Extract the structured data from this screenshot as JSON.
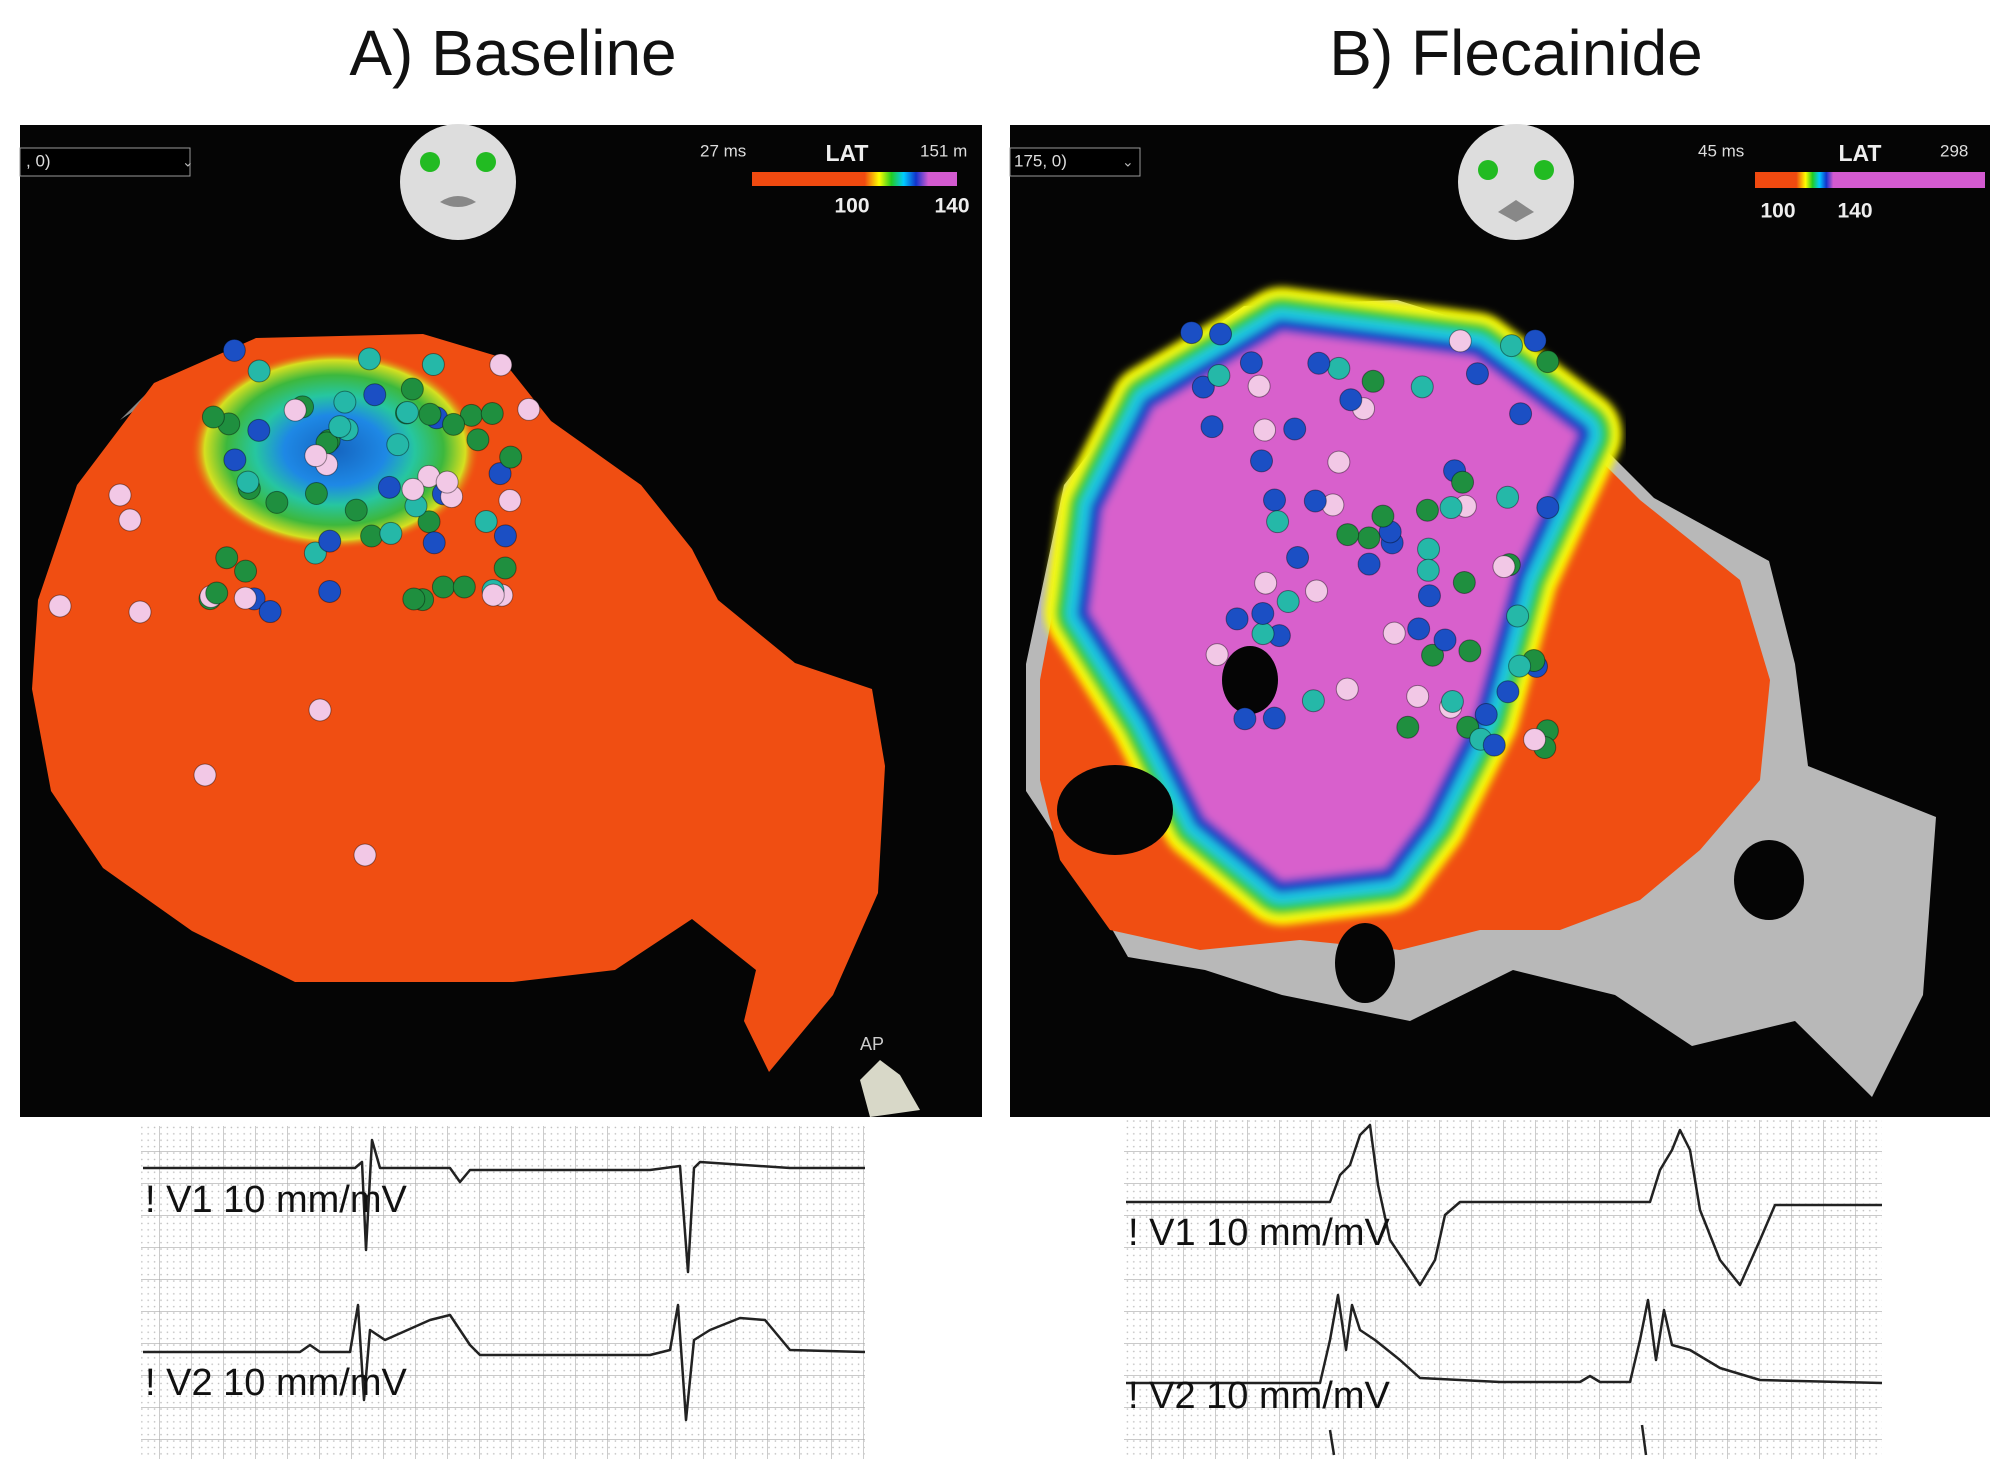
{
  "panels": [
    {
      "title": "A) Baseline",
      "map": {
        "dropdown": ", 0)",
        "lat_min": "27 ms",
        "lat_label": "LAT",
        "lat_max": "151 m",
        "scale_ticks": [
          "100",
          "140"
        ],
        "orientation": "AP"
      },
      "ecg": {
        "leads": [
          "! V1 10 mm/mV",
          "! V2 10 mm/mV"
        ]
      }
    },
    {
      "title": "B) Flecainide",
      "map": {
        "dropdown": "175, 0)",
        "lat_min": "45 ms",
        "lat_label": "LAT",
        "lat_max": "298",
        "scale_ticks": [
          "100",
          "140"
        ]
      },
      "ecg": {
        "leads": [
          "! V1 10 mm/mV",
          "! V2 10 mm/mV"
        ]
      }
    }
  ]
}
